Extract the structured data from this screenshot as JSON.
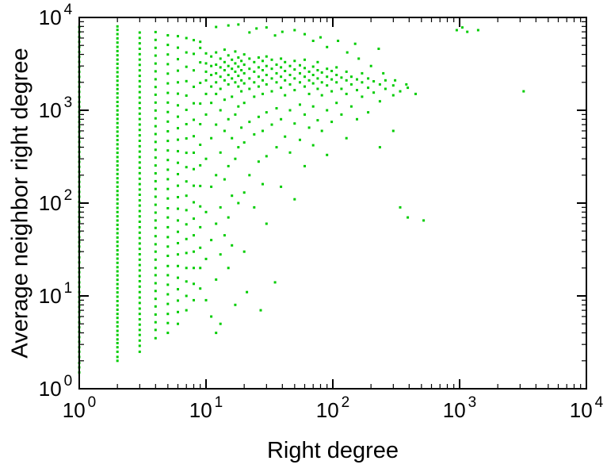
{
  "chart_data": {
    "type": "scatter",
    "title": "",
    "xlabel": "Right degree",
    "ylabel": "Average neighbor right degree",
    "x_scale": "log",
    "y_scale": "log",
    "xlim": [
      1,
      10000
    ],
    "ylim": [
      1,
      10000
    ],
    "grid": false,
    "legend": "none",
    "marker_color": "#00cc00",
    "marker_size": 3,
    "x_ticks": [
      {
        "base": "10",
        "exp": "0"
      },
      {
        "base": "10",
        "exp": "1"
      },
      {
        "base": "10",
        "exp": "2"
      },
      {
        "base": "10",
        "exp": "3"
      },
      {
        "base": "10",
        "exp": "4"
      }
    ],
    "y_ticks": [
      {
        "base": "10",
        "exp": "0"
      },
      {
        "base": "10",
        "exp": "1"
      },
      {
        "base": "10",
        "exp": "2"
      },
      {
        "base": "10",
        "exp": "3"
      },
      {
        "base": "10",
        "exp": "4"
      }
    ],
    "columns": [
      {
        "x": 1,
        "y": [
          1.5,
          1.7,
          1.9,
          2.2,
          2.5,
          2.8,
          3.2,
          3.6,
          4.1,
          4.6,
          5.2,
          5.9,
          6.7,
          7.6,
          8.6,
          9.7,
          11,
          12.5,
          14,
          16,
          18,
          20,
          23,
          26,
          30,
          34,
          38,
          43,
          49,
          55,
          63,
          71,
          80,
          91,
          103,
          117,
          132,
          150,
          169,
          192,
          217,
          246,
          278,
          315,
          356,
          403,
          456,
          517,
          585,
          662,
          749,
          848,
          960,
          1090,
          1230,
          1390,
          1580,
          1790,
          2020,
          2290,
          2590,
          2930,
          3320,
          3760,
          4250,
          4810,
          5450,
          6170,
          6980,
          7900
        ]
      },
      {
        "x": 2,
        "y": [
          2,
          2.2,
          2.5,
          2.8,
          3.1,
          3.4,
          3.8,
          4.2,
          4.7,
          5.2,
          5.8,
          6.4,
          7.1,
          7.9,
          8.8,
          9.8,
          10.9,
          12.1,
          13.4,
          14.9,
          16.6,
          18.4,
          20.4,
          22.7,
          25.2,
          28,
          31,
          34.5,
          38.3,
          42.6,
          47.3,
          52.5,
          58.3,
          64.8,
          72,
          80,
          88.9,
          98.7,
          110,
          122,
          135,
          150,
          167,
          185,
          206,
          229,
          254,
          282,
          313,
          348,
          387,
          430,
          477,
          530,
          589,
          654,
          727,
          807,
          897,
          996,
          1110,
          1230,
          1370,
          1520,
          1690,
          1870,
          2080,
          2310,
          2570,
          2850,
          3170,
          3520,
          3910,
          4340,
          4820,
          5360,
          5950,
          6610,
          7340,
          8000
        ]
      },
      {
        "x": 3,
        "y": [
          2.5,
          2.9,
          3.3,
          3.8,
          4.3,
          4.9,
          5.6,
          6.4,
          7.3,
          8.4,
          9.6,
          11,
          12.6,
          14.4,
          16.4,
          18.8,
          21.5,
          24.6,
          28.1,
          32.1,
          36.7,
          42,
          48,
          55,
          63,
          72,
          82,
          94,
          107,
          123,
          140,
          160,
          183,
          210,
          240,
          274,
          314,
          359,
          410,
          469,
          537,
          614,
          702,
          803,
          918,
          1050,
          1200,
          1370,
          1570,
          1800,
          2060,
          2350,
          2690,
          3080,
          3520,
          4020,
          4600,
          5260,
          6020,
          6880
        ]
      },
      {
        "x": 4,
        "y": [
          3.5,
          4.3,
          5.2,
          6.3,
          7.7,
          9.3,
          11.3,
          13.7,
          16.7,
          20,
          24.6,
          30,
          36,
          44,
          54,
          65,
          79,
          96,
          117,
          142,
          172,
          209,
          254,
          309,
          375,
          456,
          554,
          673,
          818,
          994,
          1210,
          1470,
          1780,
          2160,
          2630,
          3190,
          3880,
          4710,
          5730,
          6960
        ]
      },
      {
        "x": 5,
        "y": [
          4,
          5.1,
          6.4,
          8.2,
          10.4,
          13.2,
          16.7,
          21,
          27,
          34,
          43,
          55,
          70,
          88,
          112,
          142,
          181,
          229,
          291,
          369,
          468,
          594,
          754,
          957,
          1210,
          1540,
          1950,
          2480,
          3140,
          3990,
          5060,
          6420
        ]
      },
      {
        "x": 6,
        "y": [
          5,
          6.7,
          8.9,
          11.8,
          15.7,
          21,
          28,
          37,
          49,
          65,
          87,
          116,
          154,
          205,
          272,
          362,
          482,
          641,
          852,
          1130,
          1510,
          2000,
          2670,
          3550,
          4720,
          6280
        ]
      },
      {
        "x": 7,
        "y": [
          7,
          10,
          14.3,
          20,
          29,
          41,
          59,
          84,
          120,
          171,
          244,
          348,
          497,
          709,
          1010,
          1440,
          2060,
          2940,
          4200,
          5990
        ]
      },
      {
        "x": 8,
        "y": [
          9,
          13.5,
          20,
          30,
          45,
          68,
          102,
          154,
          232,
          349,
          525,
          790,
          1190,
          1790,
          2690,
          4050,
          5700
        ]
      },
      {
        "x": 9,
        "y": [
          12,
          20,
          33,
          55,
          92,
          153,
          255,
          425,
          708,
          1180,
          1970,
          3280,
          4700,
          5470
        ]
      }
    ],
    "points": [
      [
        10,
        1500
      ],
      [
        10,
        2100
      ],
      [
        10,
        2600
      ],
      [
        10,
        3200
      ],
      [
        10,
        4100
      ],
      [
        10,
        900
      ],
      [
        10,
        300
      ],
      [
        10,
        80
      ],
      [
        10,
        25
      ],
      [
        10,
        9
      ],
      [
        11,
        1800
      ],
      [
        11,
        2400
      ],
      [
        11,
        3000
      ],
      [
        11,
        3800
      ],
      [
        11,
        1200
      ],
      [
        11,
        500
      ],
      [
        11,
        150
      ],
      [
        11,
        40
      ],
      [
        11,
        6
      ],
      [
        12,
        2000
      ],
      [
        12,
        2500
      ],
      [
        12,
        3100
      ],
      [
        12,
        4200
      ],
      [
        12,
        1500
      ],
      [
        12,
        700
      ],
      [
        12,
        200
      ],
      [
        12,
        60
      ],
      [
        12,
        15
      ],
      [
        12,
        4
      ],
      [
        13,
        1700
      ],
      [
        13,
        2300
      ],
      [
        13,
        2900
      ],
      [
        13,
        3600
      ],
      [
        13,
        1000
      ],
      [
        13,
        350
      ],
      [
        13,
        90
      ],
      [
        13,
        28
      ],
      [
        13,
        5
      ],
      [
        14,
        2100
      ],
      [
        14,
        2700
      ],
      [
        14,
        3300
      ],
      [
        14,
        4500
      ],
      [
        14,
        1300
      ],
      [
        14,
        600
      ],
      [
        14,
        180
      ],
      [
        14,
        45
      ],
      [
        15,
        1900
      ],
      [
        15,
        2400
      ],
      [
        15,
        3000
      ],
      [
        15,
        3900
      ],
      [
        15,
        800
      ],
      [
        15,
        250
      ],
      [
        15,
        70
      ],
      [
        15,
        20
      ],
      [
        16,
        2200
      ],
      [
        16,
        2800
      ],
      [
        16,
        3500
      ],
      [
        16,
        1400
      ],
      [
        16,
        500
      ],
      [
        16,
        120
      ],
      [
        16,
        35
      ],
      [
        17,
        2000
      ],
      [
        17,
        2600
      ],
      [
        17,
        3200
      ],
      [
        17,
        4300
      ],
      [
        17,
        900
      ],
      [
        17,
        300
      ],
      [
        17,
        8
      ],
      [
        18,
        1800
      ],
      [
        18,
        2350
      ],
      [
        18,
        2950
      ],
      [
        18,
        3700
      ],
      [
        18,
        1100
      ],
      [
        18,
        400
      ],
      [
        18,
        100
      ],
      [
        19,
        2100
      ],
      [
        19,
        2700
      ],
      [
        19,
        3400
      ],
      [
        19,
        1600
      ],
      [
        19,
        650
      ],
      [
        20,
        1950
      ],
      [
        20,
        2500
      ],
      [
        20,
        3100
      ],
      [
        20,
        4000
      ],
      [
        20,
        1200
      ],
      [
        20,
        450
      ],
      [
        20,
        130
      ],
      [
        20,
        30
      ],
      [
        21,
        11
      ],
      [
        22,
        2200
      ],
      [
        22,
        2800
      ],
      [
        22,
        3600
      ],
      [
        22,
        1700
      ],
      [
        22,
        750
      ],
      [
        22,
        200
      ],
      [
        24,
        2000
      ],
      [
        24,
        2600
      ],
      [
        24,
        3300
      ],
      [
        24,
        1400
      ],
      [
        24,
        550
      ],
      [
        24,
        90
      ],
      [
        26,
        2300
      ],
      [
        26,
        2900
      ],
      [
        26,
        3700
      ],
      [
        26,
        1800
      ],
      [
        26,
        850
      ],
      [
        26,
        280
      ],
      [
        27,
        7
      ],
      [
        28,
        2100
      ],
      [
        28,
        2700
      ],
      [
        28,
        3400
      ],
      [
        28,
        1500
      ],
      [
        28,
        600
      ],
      [
        28,
        160
      ],
      [
        30,
        2400
      ],
      [
        30,
        3000
      ],
      [
        30,
        3800
      ],
      [
        30,
        1900
      ],
      [
        30,
        950
      ],
      [
        30,
        320
      ],
      [
        30,
        60
      ],
      [
        33,
        2200
      ],
      [
        33,
        2800
      ],
      [
        33,
        3500
      ],
      [
        33,
        1600
      ],
      [
        33,
        700
      ],
      [
        35,
        14
      ],
      [
        36,
        2500
      ],
      [
        36,
        3100
      ],
      [
        36,
        2000
      ],
      [
        36,
        1050
      ],
      [
        36,
        400
      ],
      [
        39,
        2300
      ],
      [
        39,
        2900
      ],
      [
        39,
        3600
      ],
      [
        39,
        1750
      ],
      [
        39,
        800
      ],
      [
        39,
        150
      ],
      [
        42,
        2100
      ],
      [
        42,
        2650
      ],
      [
        42,
        3300
      ],
      [
        42,
        1450
      ],
      [
        42,
        520
      ],
      [
        46,
        2400
      ],
      [
        46,
        3000
      ],
      [
        46,
        1900
      ],
      [
        46,
        1000
      ],
      [
        46,
        350
      ],
      [
        50,
        2200
      ],
      [
        50,
        2750
      ],
      [
        50,
        3400
      ],
      [
        50,
        1650
      ],
      [
        50,
        720
      ],
      [
        50,
        110
      ],
      [
        55,
        2500
      ],
      [
        55,
        3050
      ],
      [
        55,
        2000
      ],
      [
        55,
        1150
      ],
      [
        55,
        480
      ],
      [
        60,
        2300
      ],
      [
        60,
        2850
      ],
      [
        60,
        3500
      ],
      [
        60,
        1800
      ],
      [
        60,
        900
      ],
      [
        60,
        250
      ],
      [
        65,
        2100
      ],
      [
        65,
        2600
      ],
      [
        65,
        1500
      ],
      [
        65,
        650
      ],
      [
        70,
        2400
      ],
      [
        70,
        2950
      ],
      [
        70,
        1950
      ],
      [
        70,
        1100
      ],
      [
        70,
        420
      ],
      [
        76,
        2200
      ],
      [
        76,
        2700
      ],
      [
        76,
        3300
      ],
      [
        76,
        1700
      ],
      [
        76,
        780
      ],
      [
        82,
        2000
      ],
      [
        82,
        2550
      ],
      [
        82,
        1450
      ],
      [
        82,
        600
      ],
      [
        90,
        2300
      ],
      [
        90,
        2800
      ],
      [
        90,
        1850
      ],
      [
        90,
        1000
      ],
      [
        90,
        330
      ],
      [
        98,
        2150
      ],
      [
        98,
        2650
      ],
      [
        98,
        1600
      ],
      [
        98,
        750
      ],
      [
        107,
        2400
      ],
      [
        107,
        2900
      ],
      [
        107,
        2000
      ],
      [
        107,
        1200
      ],
      [
        117,
        2250
      ],
      [
        117,
        1700
      ],
      [
        117,
        900
      ],
      [
        128,
        2100
      ],
      [
        128,
        2600
      ],
      [
        128,
        1500
      ],
      [
        128,
        500
      ],
      [
        140,
        2300
      ],
      [
        140,
        1900
      ],
      [
        140,
        1100
      ],
      [
        155,
        2150
      ],
      [
        155,
        1650
      ],
      [
        155,
        800
      ],
      [
        170,
        2000
      ],
      [
        170,
        2500
      ],
      [
        170,
        1400
      ],
      [
        190,
        2200
      ],
      [
        190,
        1750
      ],
      [
        190,
        950
      ],
      [
        210,
        2050
      ],
      [
        210,
        1550
      ],
      [
        235,
        1900
      ],
      [
        235,
        1250
      ],
      [
        235,
        400
      ],
      [
        260,
        2100
      ],
      [
        260,
        1700
      ],
      [
        300,
        1850
      ],
      [
        300,
        1450
      ],
      [
        300,
        600
      ],
      [
        340,
        1600
      ],
      [
        340,
        90
      ],
      [
        390,
        1750
      ],
      [
        390,
        70
      ],
      [
        450,
        1500
      ],
      [
        520,
        65
      ],
      [
        950,
        7300
      ],
      [
        1050,
        7800
      ],
      [
        1150,
        7000
      ],
      [
        1400,
        7300
      ],
      [
        3200,
        1600
      ],
      [
        230,
        4600
      ],
      [
        150,
        5200
      ],
      [
        110,
        5600
      ],
      [
        80,
        6100
      ],
      [
        60,
        6600
      ],
      [
        40,
        7000
      ],
      [
        25,
        7600
      ],
      [
        15,
        8200
      ],
      [
        12,
        7900
      ],
      [
        18,
        8400
      ],
      [
        30,
        7800
      ],
      [
        50,
        7300
      ],
      [
        35,
        6400
      ],
      [
        22,
        6900
      ],
      [
        70,
        5600
      ],
      [
        90,
        4800
      ],
      [
        130,
        4200
      ],
      [
        160,
        3600
      ],
      [
        200,
        3000
      ],
      [
        250,
        2500
      ],
      [
        310,
        2100
      ],
      [
        380,
        1900
      ]
    ]
  }
}
